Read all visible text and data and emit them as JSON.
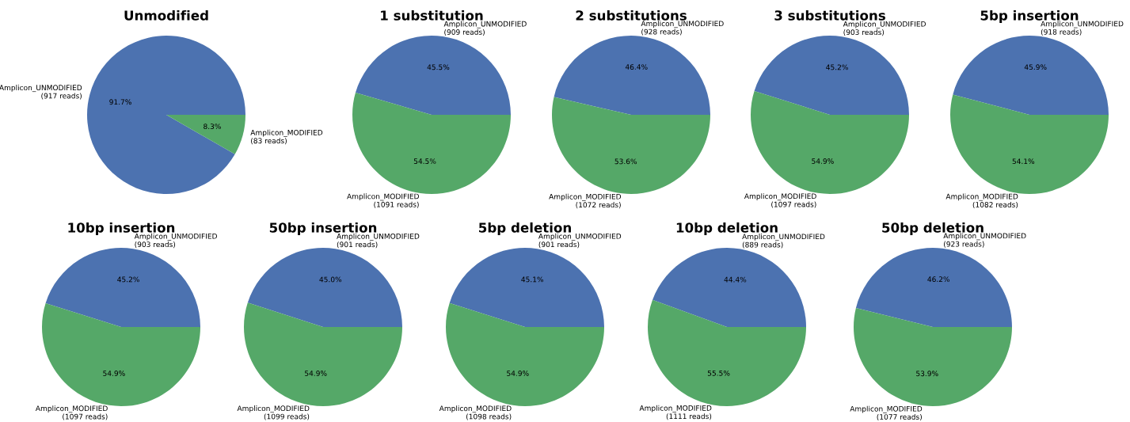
{
  "chart_data": [
    {
      "type": "pie",
      "title": "Unmodified",
      "categories": [
        "Amplicon_UNMODIFIED\n(917 reads)",
        "Amplicon_MODIFIED\n(83 reads)"
      ],
      "values": [
        91.7,
        8.3
      ],
      "value_labels": [
        "91.7%",
        "8.3%"
      ],
      "colors": [
        "#4c72b0",
        "#55a868"
      ]
    },
    {
      "type": "pie",
      "title": "1 substitution",
      "categories": [
        "Amplicon_UNMODIFIED\n(909 reads)",
        "Amplicon_MODIFIED\n(1091 reads)"
      ],
      "values": [
        45.5,
        54.5
      ],
      "value_labels": [
        "45.5%",
        "54.5%"
      ],
      "colors": [
        "#4c72b0",
        "#55a868"
      ]
    },
    {
      "type": "pie",
      "title": "2 substitutions",
      "categories": [
        "Amplicon_UNMODIFIED\n(928 reads)",
        "Amplicon_MODIFIED\n(1072 reads)"
      ],
      "values": [
        46.4,
        53.6
      ],
      "value_labels": [
        "46.4%",
        "53.6%"
      ],
      "colors": [
        "#4c72b0",
        "#55a868"
      ]
    },
    {
      "type": "pie",
      "title": "3 substitutions",
      "categories": [
        "Amplicon_UNMODIFIED\n(903 reads)",
        "Amplicon_MODIFIED\n(1097 reads)"
      ],
      "values": [
        45.2,
        54.9
      ],
      "value_labels": [
        "45.2%",
        "54.9%"
      ],
      "colors": [
        "#4c72b0",
        "#55a868"
      ]
    },
    {
      "type": "pie",
      "title": "5bp insertion",
      "categories": [
        "Amplicon_UNMODIFIED\n(918 reads)",
        "Amplicon_MODIFIED\n(1082 reads)"
      ],
      "values": [
        45.9,
        54.1
      ],
      "value_labels": [
        "45.9%",
        "54.1%"
      ],
      "colors": [
        "#4c72b0",
        "#55a868"
      ]
    },
    {
      "type": "pie",
      "title": "10bp insertion",
      "categories": [
        "Amplicon_UNMODIFIED\n(903 reads)",
        "Amplicon_MODIFIED\n(1097 reads)"
      ],
      "values": [
        45.2,
        54.9
      ],
      "value_labels": [
        "45.2%",
        "54.9%"
      ],
      "colors": [
        "#4c72b0",
        "#55a868"
      ]
    },
    {
      "type": "pie",
      "title": "50bp insertion",
      "categories": [
        "Amplicon_UNMODIFIED\n(901 reads)",
        "Amplicon_MODIFIED\n(1099 reads)"
      ],
      "values": [
        45.0,
        54.9
      ],
      "value_labels": [
        "45.0%",
        "54.9%"
      ],
      "colors": [
        "#4c72b0",
        "#55a868"
      ]
    },
    {
      "type": "pie",
      "title": "5bp deletion",
      "categories": [
        "Amplicon_UNMODIFIED\n(901 reads)",
        "Amplicon_MODIFIED\n(1098 reads)"
      ],
      "values": [
        45.1,
        54.9
      ],
      "value_labels": [
        "45.1%",
        "54.9%"
      ],
      "colors": [
        "#4c72b0",
        "#55a868"
      ]
    },
    {
      "type": "pie",
      "title": "10bp deletion",
      "categories": [
        "Amplicon_UNMODIFIED\n(889 reads)",
        "Amplicon_MODIFIED\n(1111 reads)"
      ],
      "values": [
        44.4,
        55.5
      ],
      "value_labels": [
        "44.4%",
        "55.5%"
      ],
      "colors": [
        "#4c72b0",
        "#55a868"
      ]
    },
    {
      "type": "pie",
      "title": "50bp deletion",
      "categories": [
        "Amplicon_UNMODIFIED\n(923 reads)",
        "Amplicon_MODIFIED\n(1077 reads)"
      ],
      "values": [
        46.2,
        53.9
      ],
      "value_labels": [
        "46.2%",
        "53.9%"
      ],
      "colors": [
        "#4c72b0",
        "#55a868"
      ]
    }
  ]
}
